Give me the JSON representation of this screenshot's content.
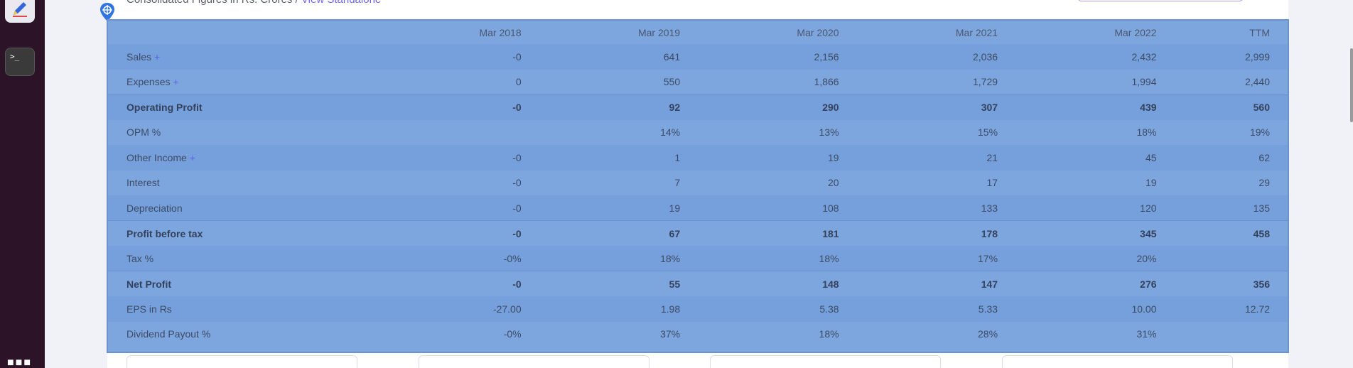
{
  "dock": {
    "apps": [
      {
        "name": "text-editor",
        "icon": "pencil-icon"
      },
      {
        "name": "terminal",
        "label": ">_"
      }
    ],
    "show_apps_icon": "grid-dots-icon"
  },
  "header": {
    "text": "Consolidated Figures in Rs. Crores / ",
    "link": "View Standalone"
  },
  "table": {
    "columns": [
      "",
      "Mar 2018",
      "Mar 2019",
      "Mar 2020",
      "Mar 2021",
      "Mar 2022",
      "TTM"
    ],
    "rows": [
      {
        "label": "Sales",
        "expandable": true,
        "values": [
          "-0",
          "641",
          "2,156",
          "2,036",
          "2,432",
          "2,999"
        ]
      },
      {
        "label": "Expenses",
        "expandable": true,
        "values": [
          "0",
          "550",
          "1,866",
          "1,729",
          "1,994",
          "2,440"
        ]
      },
      {
        "label": "Operating Profit",
        "bold": true,
        "values": [
          "-0",
          "92",
          "290",
          "307",
          "439",
          "560"
        ]
      },
      {
        "label": "OPM %",
        "values": [
          "",
          "14%",
          "13%",
          "15%",
          "18%",
          "19%"
        ]
      },
      {
        "label": "Other Income",
        "expandable": true,
        "values": [
          "-0",
          "1",
          "19",
          "21",
          "45",
          "62"
        ]
      },
      {
        "label": "Interest",
        "values": [
          "-0",
          "7",
          "20",
          "17",
          "19",
          "29"
        ]
      },
      {
        "label": "Depreciation",
        "values": [
          "-0",
          "19",
          "108",
          "133",
          "120",
          "135"
        ]
      },
      {
        "label": "Profit before tax",
        "bold": true,
        "values": [
          "-0",
          "67",
          "181",
          "178",
          "345",
          "458"
        ]
      },
      {
        "label": "Tax %",
        "values": [
          "-0%",
          "18%",
          "18%",
          "17%",
          "20%",
          ""
        ]
      },
      {
        "label": "Net Profit",
        "bold": true,
        "values": [
          "-0",
          "55",
          "148",
          "147",
          "276",
          "356"
        ]
      },
      {
        "label": "EPS in Rs",
        "values": [
          "-27.00",
          "1.98",
          "5.38",
          "5.33",
          "10.00",
          "12.72"
        ]
      },
      {
        "label": "Dividend Payout %",
        "values": [
          "-0%",
          "37%",
          "18%",
          "28%",
          "31%",
          ""
        ]
      }
    ],
    "plus_glyph": "+"
  },
  "colors": {
    "selection_overlay": "#7da6df",
    "link": "#6f67f0",
    "dock": "#2c1327"
  }
}
